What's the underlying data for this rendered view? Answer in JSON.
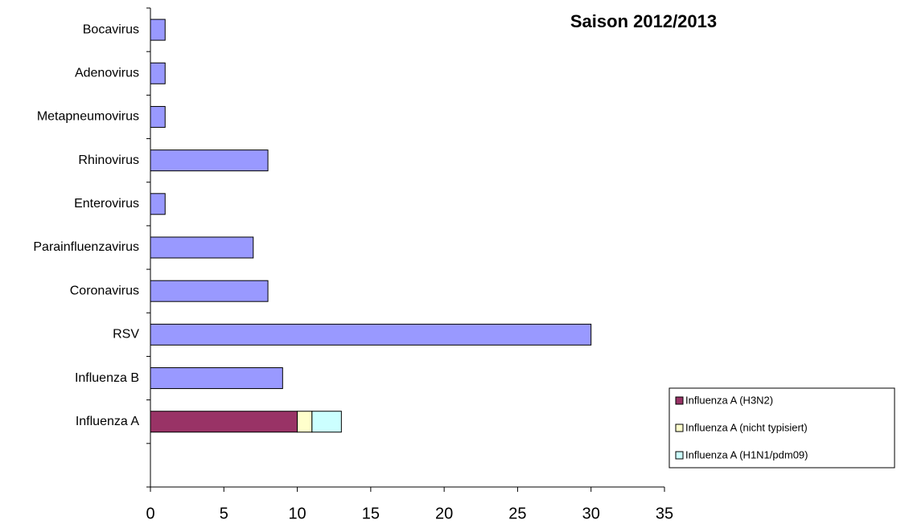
{
  "chart_data": {
    "type": "bar",
    "orientation": "horizontal",
    "stacked": true,
    "title": "Saison 2012/2013",
    "categories": [
      "Bocavirus",
      "Adenovirus",
      "Metapneumovirus",
      "Rhinovirus",
      "Enterovirus",
      "Parainfluenzavirus",
      "Coronavirus",
      "RSV",
      "Influenza B",
      "Influenza A",
      null
    ],
    "series": [
      {
        "color": "#9999ff",
        "values": [
          1,
          1,
          1,
          8,
          1,
          7,
          8,
          30,
          9,
          null,
          null
        ]
      },
      {
        "name": "Influenza A (H3N2)",
        "color": "#993366",
        "values": [
          null,
          null,
          null,
          null,
          null,
          null,
          null,
          null,
          null,
          10,
          null
        ]
      },
      {
        "name": "Influenza A (nicht typisiert)",
        "color": "#ffffcc",
        "values": [
          null,
          null,
          null,
          null,
          null,
          null,
          null,
          null,
          null,
          1,
          null
        ]
      },
      {
        "name": "Influenza A (H1N1/pdm09)",
        "color": "#ccffff",
        "values": [
          null,
          null,
          null,
          null,
          null,
          null,
          null,
          null,
          null,
          2,
          null
        ]
      }
    ],
    "xlim": [
      0,
      35
    ],
    "xticks": [
      0,
      5,
      10,
      15,
      20,
      25,
      30,
      35
    ],
    "legend": "right"
  }
}
